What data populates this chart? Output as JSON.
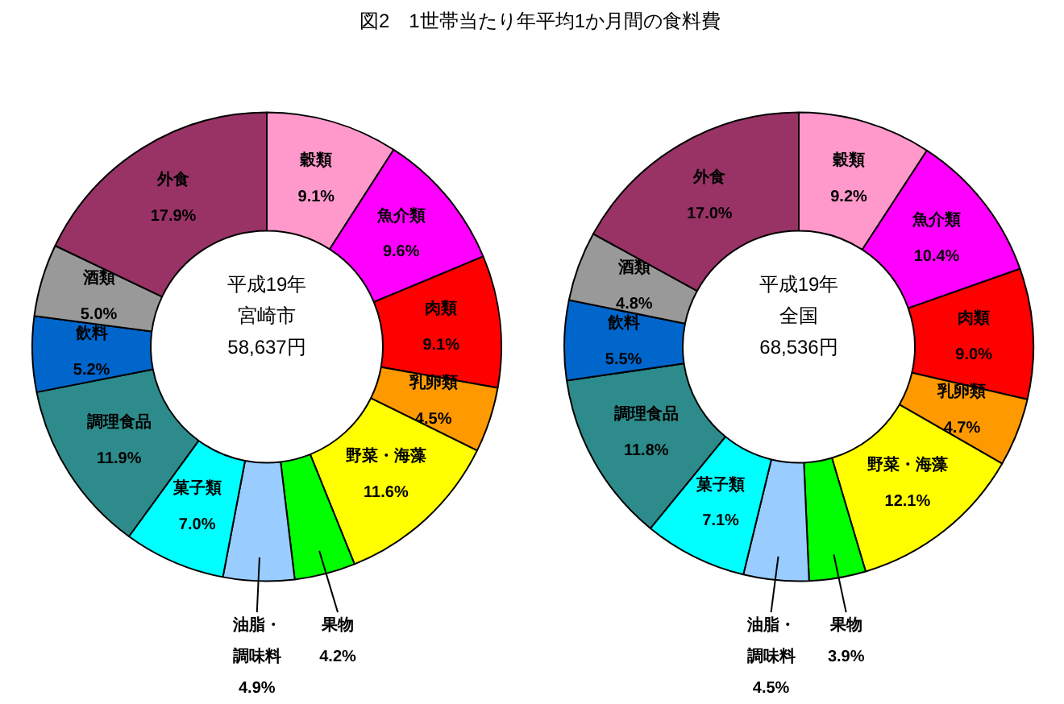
{
  "chart_data": [
    {
      "type": "donut",
      "title": "図2　1世帯当たり年平均1か月間の食料費",
      "categories": [
        "穀類",
        "魚介類",
        "肉類",
        "乳卵類",
        "野菜・海藻",
        "果物",
        "油脂・調味料",
        "菓子類",
        "調理食品",
        "飲料",
        "酒類",
        "外食"
      ],
      "values": [
        9.1,
        9.6,
        9.1,
        4.5,
        11.6,
        4.2,
        4.9,
        7.0,
        11.9,
        5.2,
        5.0,
        17.9
      ],
      "value_labels": [
        "9.1%",
        "9.6%",
        "9.1%",
        "4.5%",
        "11.6%",
        "4.2%",
        "4.9%",
        "7.0%",
        "11.9%",
        "5.2%",
        "5.0%",
        "17.9%"
      ],
      "colors": [
        "#ff99cc",
        "#ff00ff",
        "#ff0000",
        "#ff9900",
        "#ffff00",
        "#00ff00",
        "#99ccff",
        "#00ffff",
        "#2e8b8b",
        "#0066cc",
        "#999999",
        "#993366"
      ],
      "annotations": [
        "平成19年",
        "宮崎市",
        "58,637円"
      ]
    },
    {
      "type": "donut",
      "categories": [
        "穀類",
        "魚介類",
        "肉類",
        "乳卵類",
        "野菜・海藻",
        "果物",
        "油脂・調味料",
        "菓子類",
        "調理食品",
        "飲料",
        "酒類",
        "外食"
      ],
      "values": [
        9.2,
        10.4,
        9.0,
        4.7,
        12.1,
        3.9,
        4.5,
        7.1,
        11.8,
        5.5,
        4.8,
        17.0
      ],
      "value_labels": [
        "9.2%",
        "10.4%",
        "9.0%",
        "4.7%",
        "12.1%",
        "3.9%",
        "4.5%",
        "7.1%",
        "11.8%",
        "5.5%",
        "4.8%",
        "17.0%"
      ],
      "colors": [
        "#ff99cc",
        "#ff00ff",
        "#ff0000",
        "#ff9900",
        "#ffff00",
        "#00ff00",
        "#99ccff",
        "#00ffff",
        "#2e8b8b",
        "#0066cc",
        "#999999",
        "#993366"
      ],
      "annotations": [
        "平成19年",
        "全国",
        "68,536円"
      ]
    }
  ]
}
